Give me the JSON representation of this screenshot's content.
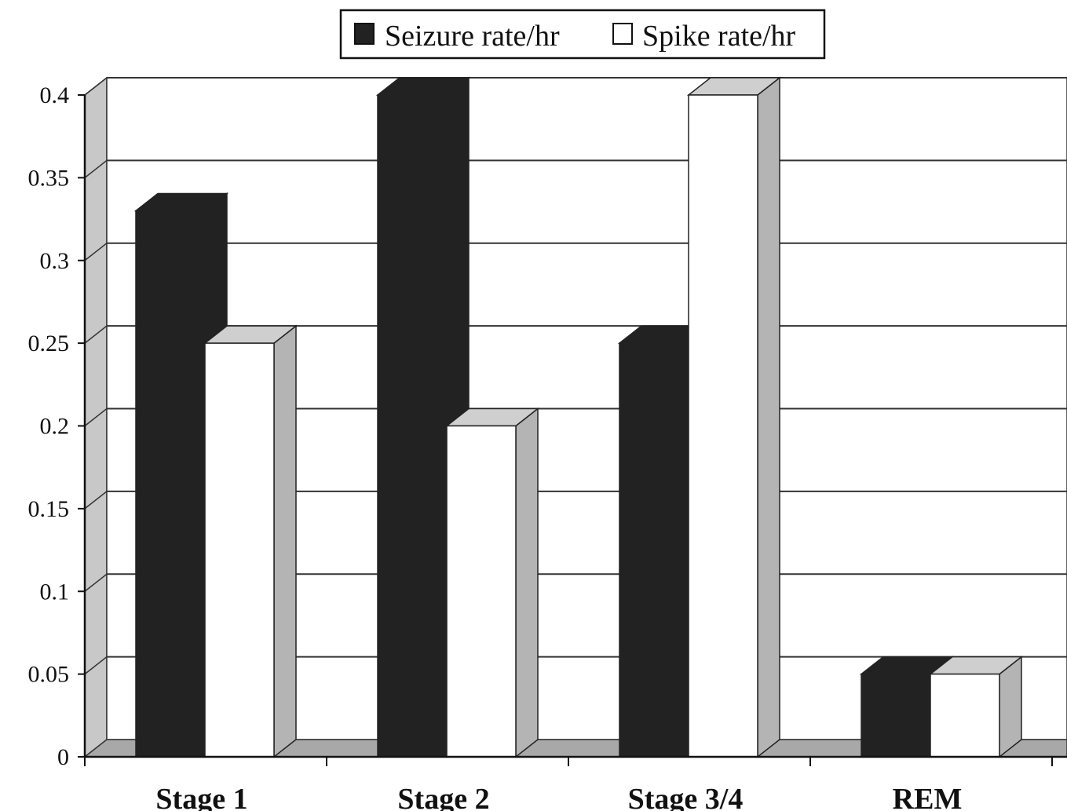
{
  "chart_data": {
    "type": "bar",
    "title": "",
    "xlabel": "",
    "ylabel": "",
    "categories": [
      "Stage 1",
      "Stage 2",
      "Stage 3/4",
      "REM"
    ],
    "series": [
      {
        "name": "Seizure rate/hr",
        "values": [
          0.33,
          0.4,
          0.25,
          0.05
        ],
        "color": "#222222"
      },
      {
        "name": "Spike rate/hr",
        "values": [
          0.25,
          0.2,
          0.4,
          0.05
        ],
        "color": "#ffffff"
      }
    ],
    "ylim": [
      0,
      0.4
    ],
    "yticks": [
      "0",
      "0.05",
      "0.1",
      "0.15",
      "0.2",
      "0.25",
      "0.3",
      "0.35",
      "0.4"
    ],
    "grid": true,
    "legend_position": "top-center",
    "style": "3d-column"
  }
}
